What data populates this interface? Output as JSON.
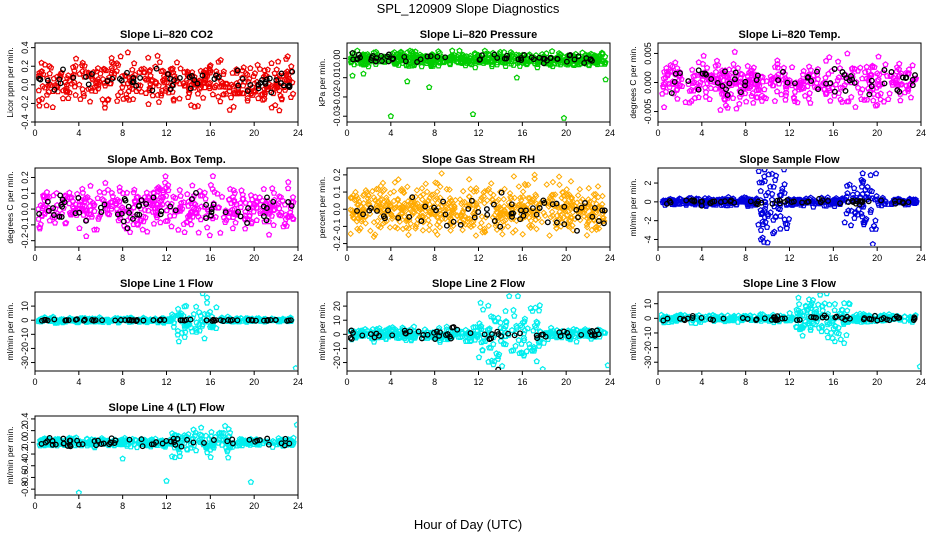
{
  "page": {
    "title": "SPL_120909  Slope Diagnostics",
    "x_axis_label": "Hour of Day (UTC)"
  },
  "chart_data": [
    {
      "type": "scatter",
      "title": "Slope Li–820 CO2",
      "ylabel": "Licor ppm per min.",
      "xlim": [
        0,
        24
      ],
      "ylim": [
        -0.4,
        0.45
      ],
      "x_ticks": [
        0,
        4,
        8,
        12,
        16,
        20,
        24
      ],
      "y_ticks": [
        -0.4,
        -0.2,
        0.0,
        0.2,
        0.4
      ],
      "y_tick_labels": [
        "-0.4",
        "-0.2",
        "0.0",
        "0.2",
        "0.4"
      ],
      "series": [
        {
          "color": "#ee0000",
          "marker": "pentagon",
          "center": 0.03,
          "spread": 0.12,
          "n": 420
        },
        {
          "color": "#000000",
          "marker": "circle",
          "center": 0.04,
          "spread": 0.06,
          "n": 60
        }
      ]
    },
    {
      "type": "scatter",
      "title": "Slope Li–820 Pressure",
      "ylabel": "kPa per min.",
      "xlim": [
        0,
        24
      ],
      "ylim": [
        -0.033,
        0.008
      ],
      "x_ticks": [
        0,
        4,
        8,
        12,
        16,
        20,
        24
      ],
      "y_ticks": [
        -0.03,
        -0.02,
        -0.01,
        0.0
      ],
      "y_tick_labels": [
        "-0.03",
        "-0.02",
        "-0.01",
        "0.00"
      ],
      "series": [
        {
          "color": "#00cc00",
          "marker": "pentagon",
          "center": -0.0005,
          "spread": 0.0018,
          "n": 520
        },
        {
          "color": "#000000",
          "marker": "circle",
          "center": 0.0,
          "spread": 0.0012,
          "n": 60
        }
      ],
      "outliers": [
        {
          "x": 0.5,
          "y": -0.009,
          "color": "#00cc00"
        },
        {
          "x": 1.5,
          "y": -0.008,
          "color": "#00cc00"
        },
        {
          "x": 4.0,
          "y": -0.03,
          "color": "#00cc00"
        },
        {
          "x": 5.5,
          "y": -0.012,
          "color": "#00cc00"
        },
        {
          "x": 7.5,
          "y": -0.015,
          "color": "#00cc00"
        },
        {
          "x": 11.5,
          "y": -0.029,
          "color": "#00cc00"
        },
        {
          "x": 15.5,
          "y": -0.01,
          "color": "#00cc00"
        },
        {
          "x": 19.8,
          "y": -0.031,
          "color": "#00cc00"
        },
        {
          "x": 23.6,
          "y": -0.011,
          "color": "#00cc00"
        }
      ]
    },
    {
      "type": "scatter",
      "title": "Slope Li–820 Temp.",
      "ylabel": "degrees C per min.",
      "xlim": [
        0,
        24
      ],
      "ylim": [
        -0.0068,
        0.0068
      ],
      "x_ticks": [
        0,
        4,
        8,
        12,
        16,
        20,
        24
      ],
      "y_ticks": [
        -0.005,
        0.0,
        0.005
      ],
      "y_tick_labels": [
        "-0.005",
        "0.000",
        "0.005"
      ],
      "series": [
        {
          "color": "#ff00ff",
          "marker": "pentagon",
          "center": 0.0,
          "spread": 0.0018,
          "n": 430
        },
        {
          "color": "#000000",
          "marker": "circle",
          "center": 0.0,
          "spread": 0.0012,
          "n": 60
        }
      ]
    },
    {
      "type": "scatter",
      "title": "Slope Amb. Box Temp.",
      "ylabel": "degrees C per min.",
      "xlim": [
        0,
        24
      ],
      "ylim": [
        -0.24,
        0.26
      ],
      "x_ticks": [
        0,
        4,
        8,
        12,
        16,
        20,
        24
      ],
      "y_ticks": [
        -0.2,
        -0.1,
        0.0,
        0.1,
        0.2
      ],
      "y_tick_labels": [
        "-0.2",
        "-0.1",
        "0.0",
        "0.1",
        "0.2"
      ],
      "series": [
        {
          "color": "#ff00ff",
          "marker": "pentagon",
          "center": 0.01,
          "spread": 0.07,
          "n": 430
        },
        {
          "color": "#000000",
          "marker": "circle",
          "center": 0.01,
          "spread": 0.05,
          "n": 60
        }
      ]
    },
    {
      "type": "scatter",
      "title": "Slope Gas Stream RH",
      "ylabel": "percent per min.",
      "xlim": [
        0,
        24
      ],
      "ylim": [
        -0.22,
        0.24
      ],
      "x_ticks": [
        0,
        4,
        8,
        12,
        16,
        20,
        24
      ],
      "y_ticks": [
        -0.2,
        -0.1,
        0.0,
        0.1,
        0.2
      ],
      "y_tick_labels": [
        "-0.2",
        "-0.1",
        "0.0",
        "0.1",
        "0.2"
      ],
      "series": [
        {
          "color": "#ffaa00",
          "marker": "diamond",
          "center": 0.0,
          "spread": 0.07,
          "n": 650
        },
        {
          "color": "#000000",
          "marker": "circle",
          "center": -0.01,
          "spread": 0.05,
          "n": 60
        }
      ]
    },
    {
      "type": "scatter",
      "title": "Slope Sample Flow",
      "ylabel": "ml/min per min.",
      "xlim": [
        0,
        24
      ],
      "ylim": [
        -4.8,
        3.6
      ],
      "x_ticks": [
        0,
        4,
        8,
        12,
        16,
        20,
        24
      ],
      "y_ticks": [
        -4,
        -2,
        0,
        2
      ],
      "y_tick_labels": [
        "-4",
        "-2",
        "0",
        "2"
      ],
      "series": [
        {
          "color": "#0000dd",
          "marker": "pentagon",
          "center": 0.0,
          "spread": 0.2,
          "n": 480,
          "burst": [
            9,
            12,
            2.0
          ],
          "burst2": [
            17,
            20,
            1.6
          ]
        },
        {
          "color": "#000000",
          "marker": "circle",
          "center": 0.0,
          "spread": 0.15,
          "n": 60
        }
      ],
      "outliers": [
        {
          "x": 9.7,
          "y": 2.7,
          "color": "#0000dd"
        },
        {
          "x": 10.1,
          "y": 2.9,
          "color": "#0000dd"
        },
        {
          "x": 9.4,
          "y": -4.0,
          "color": "#0000dd"
        },
        {
          "x": 19.6,
          "y": -4.5,
          "color": "#0000dd"
        },
        {
          "x": 19.9,
          "y": 3.0,
          "color": "#0000dd"
        },
        {
          "x": 18.6,
          "y": 1.6,
          "color": "#0000dd"
        }
      ]
    },
    {
      "type": "scatter",
      "title": "Slope Line 1 Flow",
      "ylabel": "ml/min per min.",
      "xlim": [
        0,
        24
      ],
      "ylim": [
        -36,
        20
      ],
      "x_ticks": [
        0,
        4,
        8,
        12,
        16,
        20,
        24
      ],
      "y_ticks": [
        -30,
        -20,
        -10,
        0,
        10
      ],
      "y_tick_labels": [
        "-30",
        "-20",
        "-10",
        "0",
        "10"
      ],
      "series": [
        {
          "color": "#00eeee",
          "marker": "pentagon",
          "center": 0.0,
          "spread": 0.8,
          "n": 420,
          "burst": [
            12.5,
            17,
            6.0
          ]
        },
        {
          "color": "#000000",
          "marker": "circle",
          "center": 0.0,
          "spread": 0.3,
          "n": 60
        }
      ],
      "outliers": [
        {
          "x": 15.3,
          "y": 19,
          "color": "#00eeee"
        },
        {
          "x": 15.7,
          "y": 16,
          "color": "#00eeee"
        },
        {
          "x": 23.8,
          "y": -34,
          "color": "#00eeee"
        }
      ]
    },
    {
      "type": "scatter",
      "title": "Slope Line 2 Flow",
      "ylabel": "ml/min per min.",
      "xlim": [
        0,
        24
      ],
      "ylim": [
        -26,
        30
      ],
      "x_ticks": [
        0,
        4,
        8,
        12,
        16,
        20,
        24
      ],
      "y_ticks": [
        -20,
        -10,
        0,
        10,
        20
      ],
      "y_tick_labels": [
        "-20",
        "-10",
        "0",
        "10",
        "20"
      ],
      "series": [
        {
          "color": "#00eeee",
          "marker": "pentagon",
          "center": 0.0,
          "spread": 2.2,
          "n": 450,
          "burst": [
            12,
            18,
            11.0
          ]
        },
        {
          "color": "#000000",
          "marker": "circle",
          "center": 0.0,
          "spread": 1.8,
          "n": 60
        }
      ],
      "outliers": [
        {
          "x": 14.8,
          "y": 27,
          "color": "#00eeee"
        },
        {
          "x": 15.6,
          "y": 27,
          "color": "#00eeee"
        },
        {
          "x": 23.8,
          "y": -22,
          "color": "#00eeee"
        },
        {
          "x": 13.8,
          "y": -25,
          "color": "#000000"
        }
      ]
    },
    {
      "type": "scatter",
      "title": "Slope Line 3 Flow",
      "ylabel": "ml/min per min.",
      "xlim": [
        0,
        24
      ],
      "ylim": [
        -36,
        18
      ],
      "x_ticks": [
        0,
        4,
        8,
        12,
        16,
        20,
        24
      ],
      "y_ticks": [
        -30,
        -20,
        -10,
        0,
        10
      ],
      "y_tick_labels": [
        "-30",
        "-20",
        "-10",
        "0",
        "10"
      ],
      "series": [
        {
          "color": "#00eeee",
          "marker": "pentagon",
          "center": 0.0,
          "spread": 1.3,
          "n": 430,
          "burst": [
            12.5,
            17.5,
            7.0
          ]
        },
        {
          "color": "#000000",
          "marker": "circle",
          "center": 0.0,
          "spread": 0.9,
          "n": 60
        }
      ],
      "outliers": [
        {
          "x": 14.8,
          "y": 16,
          "color": "#00eeee"
        },
        {
          "x": 15.4,
          "y": 17,
          "color": "#00eeee"
        },
        {
          "x": 23.9,
          "y": -33,
          "color": "#00eeee"
        }
      ]
    },
    {
      "type": "scatter",
      "title": "Slope Line 4 (LT) Flow",
      "ylabel": "ml/min per min.",
      "xlim": [
        0,
        24
      ],
      "ylim": [
        -0.9,
        0.45
      ],
      "x_ticks": [
        0,
        4,
        8,
        12,
        16,
        20,
        24
      ],
      "y_ticks": [
        -0.8,
        -0.6,
        -0.4,
        -0.2,
        0.0,
        0.2,
        0.4
      ],
      "y_tick_labels": [
        "-0.8",
        "-0.6",
        "-0.4",
        "-0.2",
        "0.0",
        "0.2",
        "0.4"
      ],
      "series": [
        {
          "color": "#00eeee",
          "marker": "pentagon",
          "center": 0.0,
          "spread": 0.035,
          "n": 440,
          "burst": [
            12.5,
            18,
            0.12
          ]
        },
        {
          "color": "#000000",
          "marker": "circle",
          "center": 0.0,
          "spread": 0.04,
          "n": 60
        }
      ],
      "outliers": [
        {
          "x": 4.0,
          "y": -0.86,
          "color": "#00eeee"
        },
        {
          "x": 12.0,
          "y": -0.66,
          "color": "#00eeee"
        },
        {
          "x": 19.7,
          "y": -0.68,
          "color": "#00eeee"
        },
        {
          "x": 23.9,
          "y": 0.3,
          "color": "#00eeee"
        },
        {
          "x": 8.0,
          "y": -0.28,
          "color": "#00eeee"
        }
      ]
    }
  ]
}
